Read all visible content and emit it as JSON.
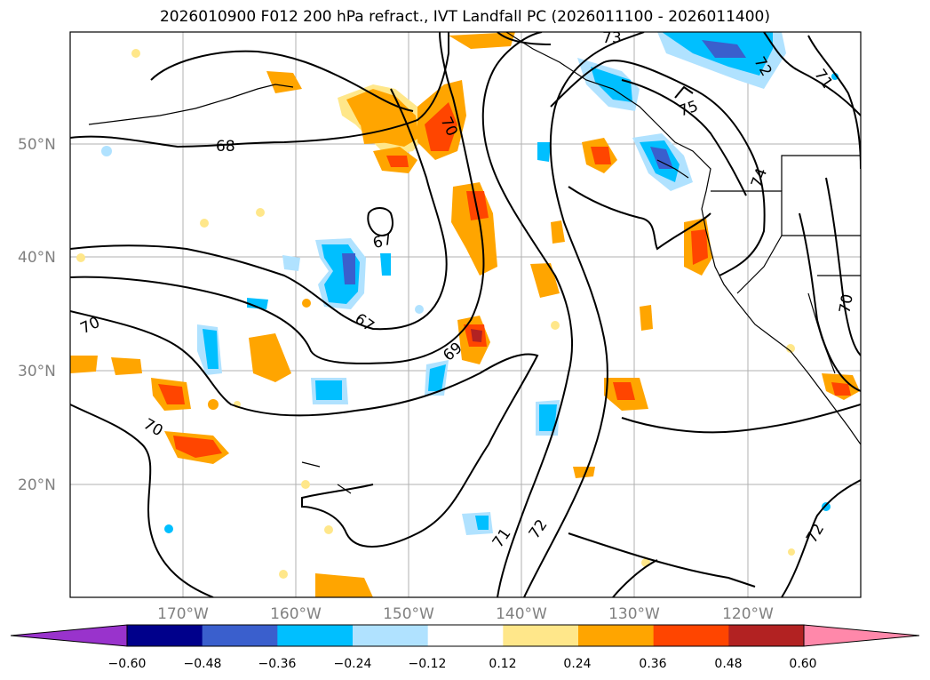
{
  "title": "2026010900 F012 200 hPa refract., IVT Landfall PC (2026011100 - 2026011400)",
  "map": {
    "lat_labels": [
      "50°N",
      "40°N",
      "30°N",
      "20°N"
    ],
    "lon_labels": [
      "170°W",
      "160°W",
      "150°W",
      "140°W",
      "130°W",
      "120°W"
    ],
    "contour_labels": [
      "73",
      "72",
      "71",
      "75",
      "74",
      "70",
      "68",
      "67",
      "67",
      "69",
      "70",
      "70",
      "71",
      "72",
      "72",
      "70"
    ]
  },
  "colorbar": {
    "ticks": [
      "−0.60",
      "−0.48",
      "−0.36",
      "−0.24",
      "−0.12",
      "0.12",
      "0.24",
      "0.36",
      "0.48",
      "0.60"
    ],
    "colors": [
      "#9933cc",
      "#00008b",
      "#3a5fcd",
      "#00bfff",
      "#b0e2ff",
      "#ffffff",
      "#ffe78a",
      "#ffa500",
      "#ff4500",
      "#b22222",
      "#ff88aa"
    ]
  }
}
